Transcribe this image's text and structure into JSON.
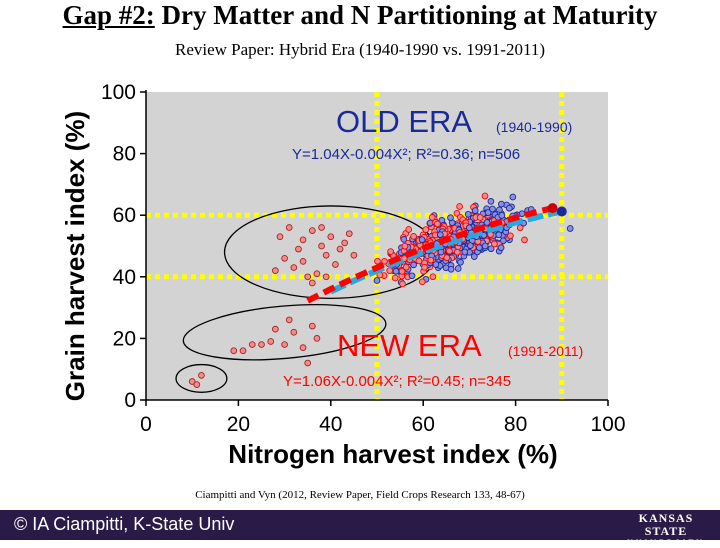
{
  "header": {
    "title_prefix": "Gap #2:",
    "title_rest": " Dry Matter and N Partitioning at Maturity",
    "subtitle": "Review Paper: Hybrid Era (1940-1990 vs. 1991-2011)"
  },
  "citation": "Ciampitti and Vyn (2012, Review Paper, Field Crops Research 133, 48-67)",
  "footer": {
    "copyright": "© IA Ciampitti, K-State Univ",
    "logo_line1": "KANSAS STATE",
    "logo_line2": "UNIVERSITY",
    "background": "#2a1a48"
  },
  "chart_data": {
    "type": "scatter",
    "xlabel": "Nitrogen harvest index (%)",
    "ylabel": "Grain harvest index (%)",
    "xlim": [
      0,
      100
    ],
    "ylim": [
      0,
      100
    ],
    "xticks": [
      "0",
      "20",
      "40",
      "60",
      "80",
      "100"
    ],
    "yticks": [
      "0",
      "20",
      "40",
      "60",
      "80",
      "100"
    ],
    "grid": false,
    "plot_background": "#d3d3d3",
    "reference_lines": {
      "x": [
        50,
        90
      ],
      "y": [
        40,
        60
      ],
      "color": "#ffff00"
    },
    "series": [
      {
        "name": "OLD ERA",
        "period": "(1940-1990)",
        "equation": "Y=1.04X-0.004X²; R²=0.36; n=506",
        "color": "#1a2a9a",
        "point_fill": "#8b8fe0",
        "fit_color": "#29a8e0",
        "fit": {
          "a": 1.04,
          "b": -0.004,
          "x_range": [
            40,
            90
          ]
        },
        "clusters": [
          {
            "x_mean": 68,
            "x_sd": 9,
            "n": 330
          }
        ]
      },
      {
        "name": "NEW ERA",
        "period": "(1991-2011)",
        "equation": "Y=1.06X-0.004X²; R²=0.45; n=345",
        "color": "#ff0000",
        "point_fill": "#e88f8f",
        "fit_color": "#ff0000",
        "fit": {
          "a": 1.06,
          "b": -0.004,
          "x_range": [
            35,
            88
          ]
        },
        "clusters": [
          {
            "x_mean": 65,
            "x_sd": 9,
            "n": 230
          }
        ]
      }
    ],
    "outlier_points": [
      {
        "x": 10,
        "y": 6
      },
      {
        "x": 12,
        "y": 8
      },
      {
        "x": 11,
        "y": 5
      },
      {
        "x": 19,
        "y": 16
      },
      {
        "x": 21,
        "y": 16
      },
      {
        "x": 23,
        "y": 18
      },
      {
        "x": 25,
        "y": 18
      },
      {
        "x": 27,
        "y": 19
      },
      {
        "x": 28,
        "y": 23
      },
      {
        "x": 30,
        "y": 18
      },
      {
        "x": 32,
        "y": 22
      },
      {
        "x": 34,
        "y": 17
      },
      {
        "x": 36,
        "y": 24
      },
      {
        "x": 31,
        "y": 26
      },
      {
        "x": 37,
        "y": 20
      },
      {
        "x": 29,
        "y": 53
      },
      {
        "x": 31,
        "y": 56
      },
      {
        "x": 33,
        "y": 49
      },
      {
        "x": 34,
        "y": 45
      },
      {
        "x": 36,
        "y": 55
      },
      {
        "x": 38,
        "y": 50
      },
      {
        "x": 39,
        "y": 47
      },
      {
        "x": 40,
        "y": 53
      },
      {
        "x": 37,
        "y": 41
      },
      {
        "x": 35,
        "y": 40
      },
      {
        "x": 32,
        "y": 43
      },
      {
        "x": 30,
        "y": 46
      },
      {
        "x": 38,
        "y": 56
      },
      {
        "x": 42,
        "y": 49
      },
      {
        "x": 43,
        "y": 51
      },
      {
        "x": 36,
        "y": 38
      },
      {
        "x": 34,
        "y": 52
      },
      {
        "x": 41,
        "y": 44
      },
      {
        "x": 39,
        "y": 40
      },
      {
        "x": 28,
        "y": 42
      },
      {
        "x": 44,
        "y": 54
      },
      {
        "x": 45,
        "y": 47
      },
      {
        "x": 35,
        "y": 12
      }
    ],
    "ellipses": [
      {
        "cx": 40,
        "cy": 48,
        "rx": 23,
        "ry": 15,
        "rotation": 0
      },
      {
        "cx": 30,
        "cy": 22,
        "rx": 22,
        "ry": 8.5,
        "rotation": -5
      },
      {
        "cx": 12,
        "cy": 7,
        "rx": 5.5,
        "ry": 4.5,
        "rotation": 0
      }
    ]
  }
}
